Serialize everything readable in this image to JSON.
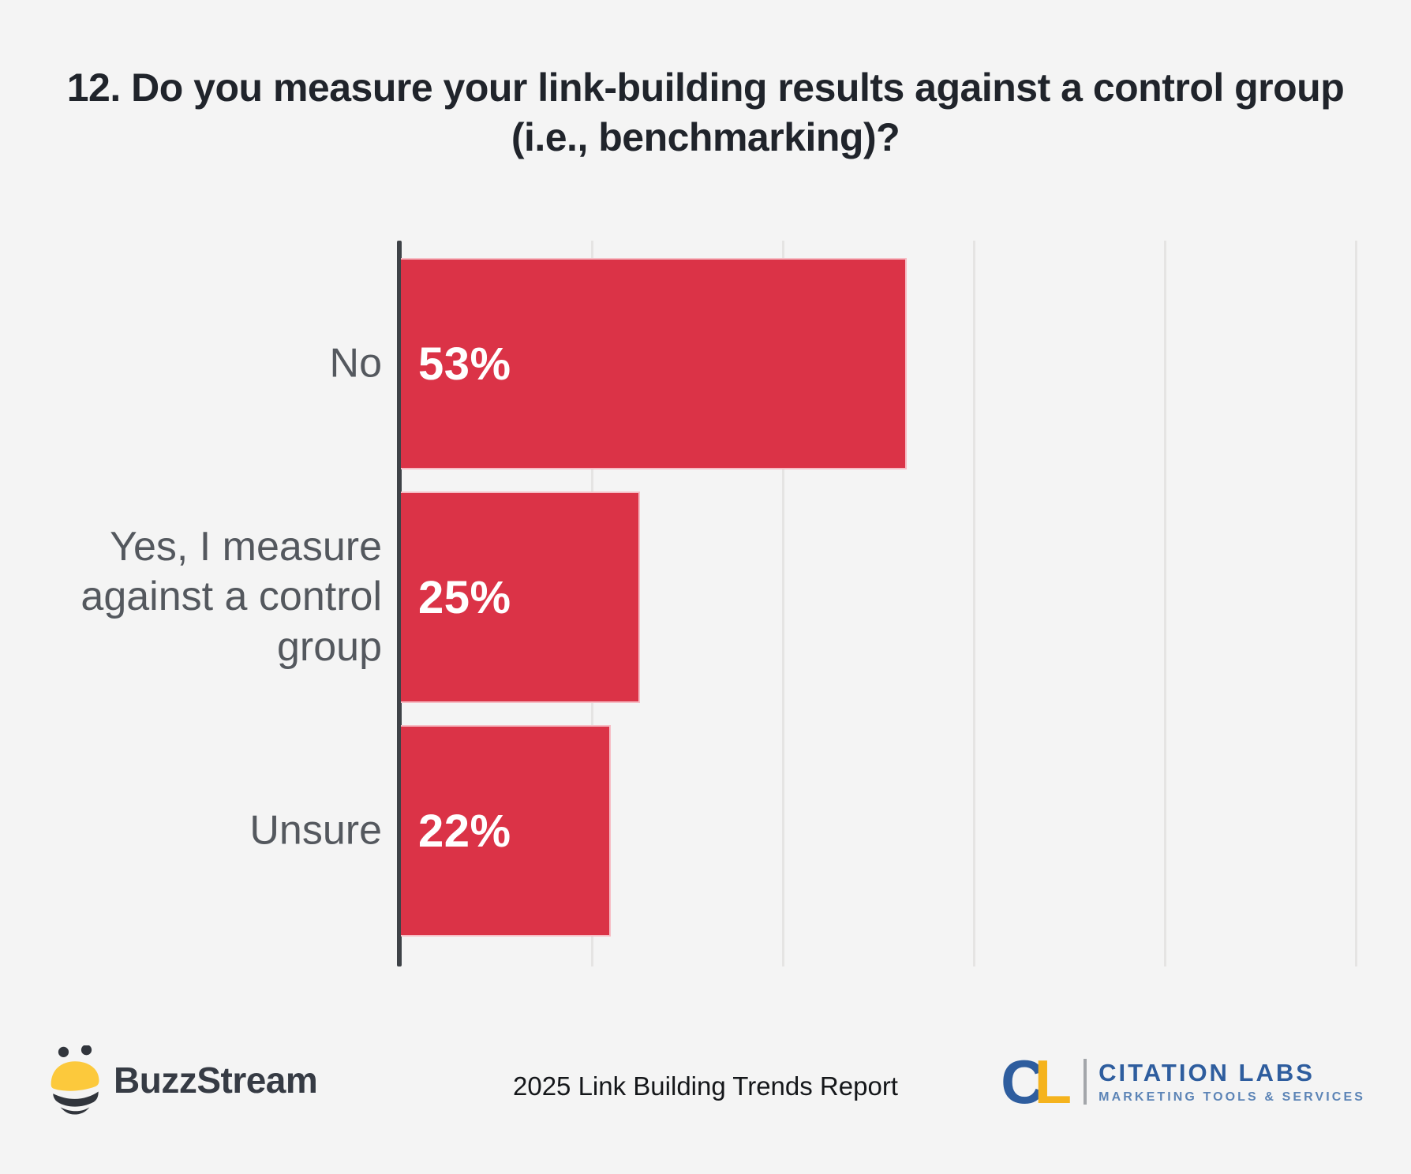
{
  "title": "12. Do you measure your link-building results against a control group (i.e., benchmarking)?",
  "chart_data": {
    "type": "bar",
    "orientation": "horizontal",
    "title": "12. Do you measure your link-building results against a control group (i.e., benchmarking)?",
    "categories": [
      "No",
      "Yes, I measure against a control group",
      "Unsure"
    ],
    "values": [
      53,
      25,
      22
    ],
    "value_labels": [
      "53%",
      "25%",
      "22%"
    ],
    "xlabel": "",
    "ylabel": "",
    "xlim": [
      0,
      100
    ],
    "gridlines_pct": [
      20,
      40,
      60,
      80,
      100
    ],
    "grid": true,
    "legend": false,
    "value_label_position": "inside-start",
    "bar_color": "#db3347",
    "axis_color": "#3e4247",
    "gridline_color": "#e5e4e3",
    "category_label_color": "#54585e",
    "value_label_color": "#ffffff",
    "background_color": "#f4f4f4"
  },
  "footer": {
    "buzzstream_brand": "BuzzStream",
    "report_title": "2025 Link Building Trends Report",
    "citation_labs": {
      "monogram_c": "C",
      "monogram_l": "L",
      "name": "CITATION LABS",
      "tagline": "MARKETING TOOLS & SERVICES"
    }
  },
  "colors": {
    "background": "#f4f4f4",
    "bar": "#db3347",
    "axis": "#3e4247",
    "gridline": "#e5e4e3",
    "title_text": "#20242b",
    "category_text": "#54585e",
    "bee_yellow": "#fcc93c",
    "bee_dark": "#31353c",
    "buzzstream_text": "#363b44",
    "citation_blue": "#2e5d9e",
    "citation_yellow": "#f5b31d",
    "citation_light_blue": "#5c84b6"
  }
}
